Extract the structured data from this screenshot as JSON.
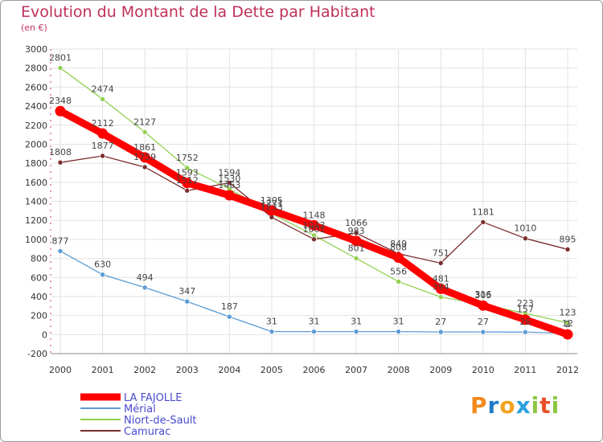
{
  "title": "Evolution du Montant de la Dette par Habitant",
  "subtitle": "(en €)",
  "logo_text": "Proxiti",
  "chart_data": {
    "type": "line",
    "x": [
      2000,
      2001,
      2002,
      2003,
      2004,
      2005,
      2006,
      2007,
      2008,
      2009,
      2010,
      2011,
      2012
    ],
    "ylim": [
      -200,
      3000
    ],
    "yticks": [
      -200,
      0,
      200,
      400,
      600,
      800,
      1000,
      1200,
      1400,
      1600,
      1800,
      2000,
      2200,
      2400,
      2600,
      2800,
      3000
    ],
    "grid": true,
    "legend_position": "bottom-left",
    "series": [
      {
        "name": "LA FAJOLLE",
        "color": "#ff0000",
        "values": [
          2348,
          2112,
          1861,
          1593,
          1463,
          1305,
          1148,
          983,
          808,
          481,
          305,
          157,
          2
        ],
        "labels": [
          "2348",
          "2112",
          "1861",
          "1593",
          "1463",
          "1305",
          "1148",
          "983",
          "808",
          "481",
          "305",
          "157",
          "2"
        ]
      },
      {
        "name": "Mérial",
        "color": "#5b9bd5",
        "values": [
          877,
          630,
          494,
          347,
          187,
          31,
          31,
          31,
          31,
          27,
          27,
          26,
          12
        ],
        "labels": [
          "877",
          "630",
          "494",
          "347",
          "187",
          "31",
          "31",
          "31",
          "31",
          "27",
          "27",
          "26",
          "12"
        ]
      },
      {
        "name": "Niort-de-Sault",
        "color": "#92d050",
        "values": [
          2801,
          2474,
          2127,
          1752,
          1530,
          1271,
          1043,
          801,
          556,
          394,
          316,
          223,
          123
        ],
        "labels": [
          "2801",
          "2474",
          "2127",
          "1752",
          "1530",
          "1271",
          "1043",
          "801",
          "556",
          "394",
          "316",
          "223",
          "123"
        ]
      },
      {
        "name": "Camurac",
        "color": "#7b2d2d",
        "values": [
          1808,
          1877,
          1759,
          1512,
          1594,
          1233,
          1001,
          1066,
          849,
          751,
          1181,
          1010,
          895
        ],
        "labels": [
          "1808",
          "1877",
          "1759",
          "1512",
          "1594",
          "1233",
          "1001",
          "1066",
          "849",
          "751",
          "1181",
          "1010",
          "895"
        ]
      }
    ]
  }
}
